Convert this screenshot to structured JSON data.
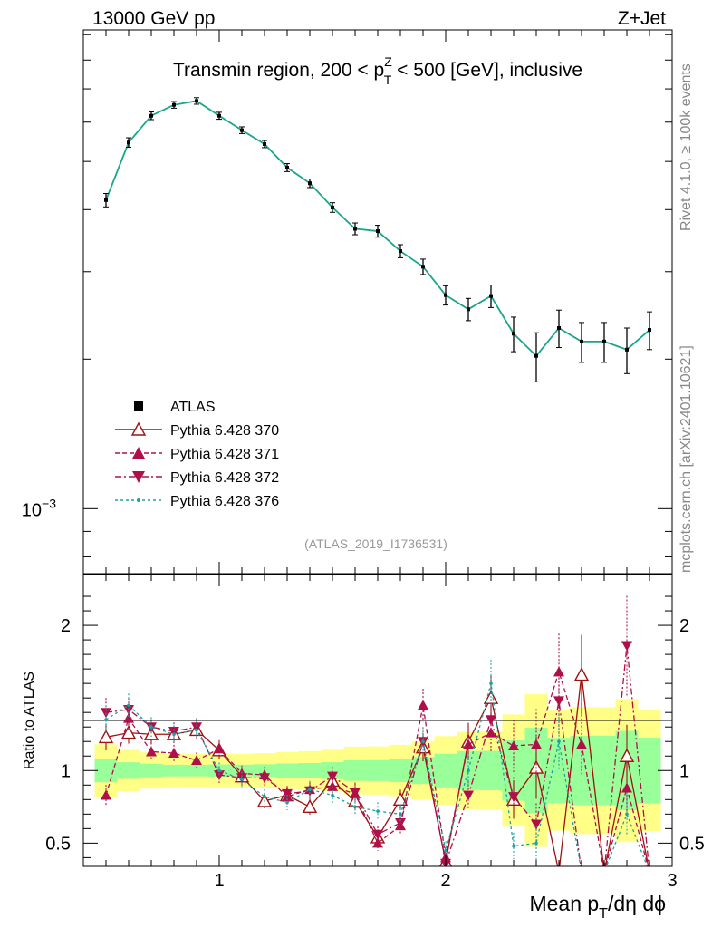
{
  "header": {
    "energy_label": "13000 GeV pp",
    "process_label": "Z+Jet"
  },
  "side_labels": {
    "rivet": "Rivet 4.1.0, ≥ 100k events",
    "mcplots": "mcplots.cern.ch [arXiv:2401.10621]"
  },
  "chart_data": {
    "type": "line",
    "title": "Transmin region, 200 < pTZ < 500 [GeV], inclusive",
    "title_parts": {
      "pre": "Transmin region, 200 < p",
      "sup": "Z",
      "sub": "T",
      "post": " < 500 [GeV], inclusive"
    },
    "analysis_id": "(ATLAS_2019_I1736531)",
    "xlabel": "Mean pT/dη dϕ",
    "xlabel_parts": {
      "pre": "Mean p",
      "sub": "T",
      "post": "/dη dϕ"
    },
    "ylabel_ratio": "Ratio to ATLAS",
    "x_range": [
      0.4,
      3.0
    ],
    "y_range_log": [
      0.00074,
      0.0092
    ],
    "y_tick_label": "10",
    "y_tick_exp": "−3",
    "ratio_range": [
      0.34,
      2.35
    ],
    "x_ticks": [
      "1",
      "2",
      "3"
    ],
    "ratio_ticks": [
      "0.5",
      "1",
      "2"
    ],
    "x": [
      0.5,
      0.6,
      0.7,
      0.8,
      0.9,
      1.0,
      1.1,
      1.2,
      1.3,
      1.4,
      1.5,
      1.6,
      1.7,
      1.8,
      1.9,
      2.0,
      2.1,
      2.2,
      2.3,
      2.4,
      2.5,
      2.6,
      2.7,
      2.8,
      2.9
    ],
    "series": [
      {
        "name": "ATLAS",
        "values": [
          0.00418,
          0.00546,
          0.00618,
          0.0065,
          0.00662,
          0.00618,
          0.00578,
          0.00542,
          0.00486,
          0.00452,
          0.00404,
          0.00366,
          0.00362,
          0.0033,
          0.00307,
          0.00269,
          0.00252,
          0.00268,
          0.00225,
          0.00203,
          0.00231,
          0.00217,
          0.00217,
          0.00209,
          0.00229
        ],
        "errors": [
          0.00013,
          0.00012,
          0.00011,
          0.0001,
          0.0001,
          0.0001,
          9e-05,
          9e-05,
          9e-05,
          9e-05,
          9e-05,
          0.0001,
          0.0001,
          0.0001,
          0.00011,
          0.00012,
          0.00013,
          0.00014,
          0.00018,
          0.00023,
          0.0002,
          0.0002,
          0.0002,
          0.00022,
          0.0002
        ],
        "color": "#000000"
      },
      {
        "name": "Pythia 6.428 370",
        "ratios": [
          1.23,
          1.26,
          1.25,
          1.25,
          1.28,
          1.14,
          0.96,
          0.79,
          0.83,
          0.75,
          0.93,
          0.79,
          0.54,
          0.8,
          1.16,
          0.37,
          1.2,
          1.5,
          0.8,
          1.02,
          0.3,
          1.66,
          0.3,
          1.1,
          0.3
        ],
        "color": "#a01010"
      },
      {
        "name": "Pythia 6.428 371",
        "ratios": [
          0.83,
          1.36,
          1.13,
          1.12,
          1.07,
          1.15,
          0.98,
          0.97,
          0.82,
          0.87,
          0.89,
          0.84,
          0.5,
          0.62,
          1.45,
          0.4,
          1.18,
          1.26,
          1.17,
          1.18,
          1.68,
          1.18,
          0.3,
          0.88,
          0.3
        ],
        "color": "#b0104a"
      },
      {
        "name": "Pythia 6.428 372",
        "ratios": [
          1.4,
          1.42,
          1.3,
          1.27,
          1.3,
          0.97,
          0.95,
          0.95,
          0.84,
          0.86,
          0.96,
          0.85,
          0.56,
          0.64,
          1.2,
          0.36,
          0.83,
          1.35,
          0.82,
          0.63,
          1.48,
          0.3,
          0.3,
          1.86,
          0.3
        ],
        "color": "#b0104a"
      },
      {
        "name": "Pythia 6.428 376",
        "ratios": [
          1.35,
          1.45,
          1.3,
          1.25,
          1.28,
          1.0,
          0.94,
          0.82,
          0.78,
          0.87,
          0.83,
          0.75,
          0.72,
          0.7,
          1.2,
          0.45,
          1.0,
          1.6,
          0.48,
          0.5,
          1.2,
          0.3,
          0.3,
          0.7,
          0.3
        ],
        "color": "#20a0a0"
      }
    ],
    "legend_position": "left"
  },
  "colors": {
    "band_outer": "#ffff88",
    "band_inner": "#99ff99"
  }
}
